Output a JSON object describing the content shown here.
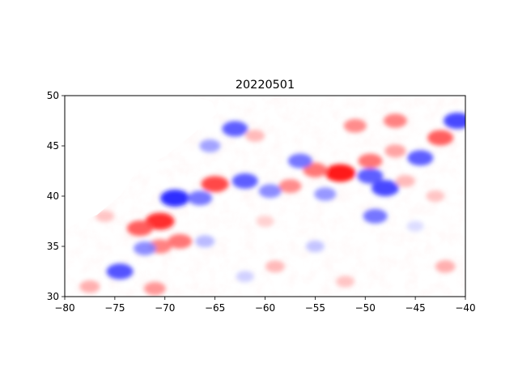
{
  "chart_data": {
    "type": "heatmap",
    "title": "20220501",
    "xlabel": "",
    "ylabel": "",
    "xlim": [
      -80,
      -40
    ],
    "ylim": [
      30,
      50
    ],
    "xticks": [
      -80,
      -75,
      -70,
      -65,
      -60,
      -55,
      -50,
      -45,
      -40
    ],
    "yticks": [
      30,
      35,
      40,
      45,
      50
    ],
    "xtick_labels": [
      "−80",
      "−75",
      "−70",
      "−65",
      "−60",
      "−55",
      "−50",
      "−45",
      "−40"
    ],
    "ytick_labels": [
      "30",
      "35",
      "40",
      "45",
      "50"
    ],
    "colormap": "bwr",
    "colors": {
      "negative": "#0000ff",
      "zero": "#ffffff",
      "positive": "#ff0000"
    },
    "grid": false,
    "features": [
      {
        "x": -70.5,
        "y": 37.5,
        "value": 0.9
      },
      {
        "x": -72.5,
        "y": 36.8,
        "value": 0.7
      },
      {
        "x": -68.5,
        "y": 35.5,
        "value": 0.6
      },
      {
        "x": -70.5,
        "y": 35.0,
        "value": 0.55
      },
      {
        "x": -65.0,
        "y": 41.2,
        "value": 0.8
      },
      {
        "x": -57.5,
        "y": 41.0,
        "value": 0.5
      },
      {
        "x": -52.5,
        "y": 42.3,
        "value": 1.0
      },
      {
        "x": -55.0,
        "y": 42.6,
        "value": 0.6
      },
      {
        "x": -49.5,
        "y": 43.5,
        "value": 0.6
      },
      {
        "x": -47.0,
        "y": 44.5,
        "value": 0.4
      },
      {
        "x": -42.5,
        "y": 45.8,
        "value": 0.7
      },
      {
        "x": -51.0,
        "y": 47.0,
        "value": 0.5
      },
      {
        "x": -47.0,
        "y": 47.5,
        "value": 0.55
      },
      {
        "x": -61.0,
        "y": 46.0,
        "value": 0.3
      },
      {
        "x": -69.0,
        "y": 39.8,
        "value": -0.9
      },
      {
        "x": -66.5,
        "y": 39.8,
        "value": -0.6
      },
      {
        "x": -62.0,
        "y": 41.5,
        "value": -0.7
      },
      {
        "x": -59.5,
        "y": 40.5,
        "value": -0.5
      },
      {
        "x": -56.5,
        "y": 43.5,
        "value": -0.6
      },
      {
        "x": -54.0,
        "y": 40.2,
        "value": -0.45
      },
      {
        "x": -48.0,
        "y": 40.8,
        "value": -0.8
      },
      {
        "x": -49.0,
        "y": 38.0,
        "value": -0.6
      },
      {
        "x": -49.5,
        "y": 42.0,
        "value": -0.7
      },
      {
        "x": -44.5,
        "y": 43.8,
        "value": -0.7
      },
      {
        "x": -40.8,
        "y": 47.5,
        "value": -0.8
      },
      {
        "x": -63.0,
        "y": 46.7,
        "value": -0.7
      },
      {
        "x": -65.5,
        "y": 45.0,
        "value": -0.4
      },
      {
        "x": -74.5,
        "y": 32.5,
        "value": -0.75
      },
      {
        "x": -72.0,
        "y": 34.8,
        "value": -0.5
      },
      {
        "x": -66.0,
        "y": 35.5,
        "value": -0.3
      },
      {
        "x": -55.0,
        "y": 35.0,
        "value": -0.25
      },
      {
        "x": -62.0,
        "y": 32.0,
        "value": -0.2
      },
      {
        "x": -45.0,
        "y": 37.0,
        "value": -0.15
      },
      {
        "x": -77.5,
        "y": 31.0,
        "value": 0.35
      },
      {
        "x": -71.0,
        "y": 30.8,
        "value": 0.45
      },
      {
        "x": -59.0,
        "y": 33.0,
        "value": 0.3
      },
      {
        "x": -42.0,
        "y": 33.0,
        "value": 0.35
      },
      {
        "x": -52.0,
        "y": 31.5,
        "value": 0.25
      },
      {
        "x": -46.0,
        "y": 41.5,
        "value": 0.3
      },
      {
        "x": -43.0,
        "y": 40.0,
        "value": 0.25
      },
      {
        "x": -60.0,
        "y": 37.5,
        "value": 0.2
      },
      {
        "x": -76.0,
        "y": 38.0,
        "value": 0.25
      }
    ]
  }
}
